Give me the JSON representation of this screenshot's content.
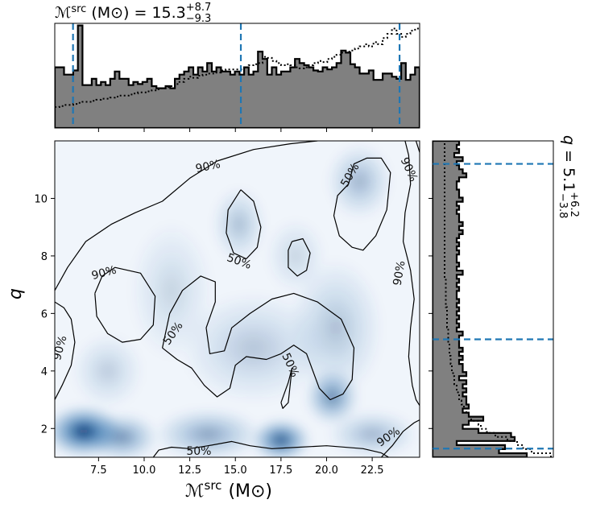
{
  "chart_data": {
    "type": "heatmap",
    "main": {
      "xlabel_main": "ℳ",
      "xlabel_sup": "src",
      "xlabel_unit": "(M⊙)",
      "ylabel": "q",
      "xlim": [
        5.1,
        25.1
      ],
      "ylim": [
        1.0,
        12.0
      ],
      "xticks": [
        7.5,
        10.0,
        12.5,
        15.0,
        17.5,
        20.0,
        22.5
      ],
      "xtick_labels": [
        "7.5",
        "10.0",
        "12.5",
        "15.0",
        "17.5",
        "20.0",
        "22.5"
      ],
      "yticks": [
        2,
        4,
        6,
        8,
        10
      ],
      "ytick_labels": [
        "2",
        "4",
        "6",
        "8",
        "10"
      ],
      "colormap": "Blues",
      "density_blobs": [
        {
          "x": 6.7,
          "y": 1.9,
          "sx": 1.3,
          "sy": 0.55,
          "w": 1.0
        },
        {
          "x": 8.8,
          "y": 1.7,
          "sx": 1.2,
          "sy": 0.5,
          "w": 0.55
        },
        {
          "x": 13.5,
          "y": 1.8,
          "sx": 1.8,
          "sy": 0.55,
          "w": 0.45
        },
        {
          "x": 17.5,
          "y": 1.6,
          "sx": 1.0,
          "sy": 0.45,
          "w": 0.85
        },
        {
          "x": 20.3,
          "y": 3.1,
          "sx": 0.9,
          "sy": 0.6,
          "w": 0.6
        },
        {
          "x": 22.5,
          "y": 1.8,
          "sx": 1.5,
          "sy": 0.5,
          "w": 0.35
        },
        {
          "x": 21.8,
          "y": 10.6,
          "sx": 1.1,
          "sy": 0.8,
          "w": 0.35
        },
        {
          "x": 15.2,
          "y": 9.1,
          "sx": 0.9,
          "sy": 0.8,
          "w": 0.3
        },
        {
          "x": 16.0,
          "y": 4.8,
          "sx": 2.5,
          "sy": 1.2,
          "w": 0.25
        },
        {
          "x": 20.5,
          "y": 5.5,
          "sx": 1.6,
          "sy": 1.5,
          "w": 0.28
        },
        {
          "x": 8.0,
          "y": 4.0,
          "sx": 1.2,
          "sy": 0.8,
          "w": 0.22
        },
        {
          "x": 11.5,
          "y": 6.8,
          "sx": 1.4,
          "sy": 1.5,
          "w": 0.18
        },
        {
          "x": 18.3,
          "y": 8.0,
          "sx": 1.0,
          "sy": 0.8,
          "w": 0.18
        }
      ],
      "contours_50": [
        [
          [
            10.5,
            1.0
          ],
          [
            10.8,
            1.25
          ],
          [
            11.5,
            1.35
          ],
          [
            12.5,
            1.3
          ],
          [
            13.5,
            1.4
          ],
          [
            14.8,
            1.55
          ],
          [
            15.8,
            1.4
          ],
          [
            17.0,
            1.3
          ],
          [
            18.5,
            1.35
          ],
          [
            20.0,
            1.4
          ],
          [
            22.0,
            1.3
          ],
          [
            23.0,
            1.15
          ],
          [
            23.4,
            1.0
          ]
        ],
        [
          [
            21.2,
            10.5
          ],
          [
            21.5,
            11.2
          ],
          [
            22.2,
            11.4
          ],
          [
            23.0,
            11.4
          ],
          [
            23.5,
            10.9
          ],
          [
            23.3,
            9.6
          ],
          [
            22.7,
            8.7
          ],
          [
            22.0,
            8.2
          ],
          [
            21.4,
            8.3
          ],
          [
            20.7,
            8.7
          ],
          [
            20.4,
            9.4
          ],
          [
            20.6,
            10.1
          ],
          [
            21.2,
            10.5
          ]
        ],
        [
          [
            15.3,
            10.3
          ],
          [
            16.0,
            9.9
          ],
          [
            16.4,
            9.0
          ],
          [
            16.2,
            8.3
          ],
          [
            15.6,
            7.9
          ],
          [
            14.9,
            8.1
          ],
          [
            14.5,
            8.8
          ],
          [
            14.6,
            9.6
          ],
          [
            15.3,
            10.3
          ]
        ],
        [
          [
            18.1,
            8.5
          ],
          [
            18.7,
            8.6
          ],
          [
            19.1,
            8.1
          ],
          [
            18.9,
            7.5
          ],
          [
            18.4,
            7.3
          ],
          [
            17.9,
            7.6
          ],
          [
            17.9,
            8.2
          ],
          [
            18.1,
            8.5
          ]
        ],
        [
          [
            11.0,
            4.8
          ],
          [
            11.4,
            6.0
          ],
          [
            12.1,
            6.8
          ],
          [
            13.1,
            7.3
          ],
          [
            13.9,
            7.1
          ],
          [
            13.9,
            6.4
          ],
          [
            13.4,
            5.5
          ],
          [
            13.6,
            4.6
          ],
          [
            14.4,
            4.7
          ],
          [
            14.8,
            5.5
          ],
          [
            15.8,
            6.0
          ],
          [
            17.0,
            6.5
          ],
          [
            18.2,
            6.7
          ],
          [
            19.5,
            6.4
          ],
          [
            20.8,
            5.8
          ],
          [
            21.5,
            4.8
          ],
          [
            21.4,
            3.7
          ],
          [
            20.9,
            3.2
          ],
          [
            20.2,
            3.0
          ],
          [
            19.6,
            3.4
          ],
          [
            18.9,
            4.6
          ],
          [
            18.2,
            4.9
          ],
          [
            17.5,
            4.6
          ],
          [
            16.7,
            4.4
          ],
          [
            15.6,
            4.5
          ],
          [
            15.0,
            4.2
          ],
          [
            14.7,
            3.4
          ],
          [
            14.0,
            3.1
          ],
          [
            13.3,
            3.5
          ],
          [
            12.6,
            4.1
          ],
          [
            11.8,
            4.4
          ],
          [
            11.0,
            4.8
          ]
        ],
        [
          [
            17.5,
            2.9
          ],
          [
            17.9,
            3.6
          ],
          [
            18.1,
            4.1
          ],
          [
            17.9,
            2.9
          ],
          [
            17.6,
            2.7
          ],
          [
            17.5,
            2.9
          ]
        ]
      ],
      "contours_90": [
        [
          [
            5.1,
            6.8
          ],
          [
            5.8,
            7.6
          ],
          [
            6.8,
            8.5
          ],
          [
            8.2,
            9.1
          ],
          [
            9.5,
            9.5
          ],
          [
            11.0,
            9.9
          ],
          [
            12.5,
            10.7
          ],
          [
            14.0,
            11.3
          ],
          [
            16.0,
            11.7
          ],
          [
            18.0,
            11.9
          ],
          [
            19.5,
            12.0
          ]
        ],
        [
          [
            7.3,
            6.7
          ],
          [
            7.7,
            7.3
          ],
          [
            8.4,
            7.6
          ],
          [
            9.8,
            7.4
          ],
          [
            10.6,
            6.6
          ],
          [
            10.5,
            5.6
          ],
          [
            9.8,
            5.1
          ],
          [
            8.8,
            5.0
          ],
          [
            8.0,
            5.3
          ],
          [
            7.4,
            5.9
          ],
          [
            7.3,
            6.7
          ]
        ],
        [
          [
            5.1,
            3.0
          ],
          [
            5.5,
            3.5
          ],
          [
            6.0,
            4.2
          ],
          [
            6.2,
            5.0
          ],
          [
            6.0,
            5.8
          ],
          [
            5.6,
            6.2
          ],
          [
            5.1,
            6.4
          ]
        ],
        [
          [
            24.3,
            12.0
          ],
          [
            24.5,
            11.5
          ],
          [
            24.6,
            10.5
          ],
          [
            24.3,
            9.5
          ],
          [
            24.2,
            8.5
          ],
          [
            24.6,
            7.5
          ],
          [
            24.8,
            6.5
          ],
          [
            24.6,
            5.5
          ],
          [
            24.5,
            4.5
          ],
          [
            24.7,
            3.5
          ],
          [
            24.9,
            3.0
          ],
          [
            25.1,
            2.8
          ]
        ],
        [
          [
            23.0,
            1.0
          ],
          [
            23.6,
            1.4
          ],
          [
            24.2,
            1.9
          ],
          [
            24.8,
            2.2
          ],
          [
            25.1,
            2.3
          ]
        ],
        [
          [
            24.9,
            12.0
          ],
          [
            25.1,
            11.6
          ]
        ]
      ],
      "contour_labels": [
        {
          "text": "90%",
          "x": 13.5,
          "y": 11.1,
          "rot": -12
        },
        {
          "text": "90%",
          "x": 24.5,
          "y": 11.0,
          "rot": 65
        },
        {
          "text": "50%",
          "x": 21.3,
          "y": 10.8,
          "rot": -60
        },
        {
          "text": "90%",
          "x": 7.8,
          "y": 7.4,
          "rot": -15
        },
        {
          "text": "50%",
          "x": 15.2,
          "y": 7.8,
          "rot": 20
        },
        {
          "text": "90%",
          "x": 24.0,
          "y": 7.4,
          "rot": -80
        },
        {
          "text": "50%",
          "x": 11.6,
          "y": 5.3,
          "rot": -55
        },
        {
          "text": "90%",
          "x": 5.4,
          "y": 4.8,
          "rot": -75
        },
        {
          "text": "50%",
          "x": 18.0,
          "y": 4.2,
          "rot": 65
        },
        {
          "text": "50%",
          "x": 13.0,
          "y": 1.2,
          "rot": 0
        },
        {
          "text": "90%",
          "x": 23.4,
          "y": 1.7,
          "rot": -35
        }
      ]
    },
    "top": {
      "title_main": "ℳ",
      "title_sup": "src",
      "title_unit": "(M⊙) = ",
      "title_value": "15.3",
      "title_plus": "+8.7",
      "title_minus": "−9.3",
      "hist_values": [
        0.58,
        0.58,
        0.51,
        0.51,
        0.55,
        0.98,
        0.41,
        0.41,
        0.47,
        0.41,
        0.44,
        0.41,
        0.47,
        0.54,
        0.47,
        0.47,
        0.41,
        0.44,
        0.42,
        0.44,
        0.47,
        0.4,
        0.38,
        0.38,
        0.4,
        0.38,
        0.47,
        0.51,
        0.54,
        0.58,
        0.51,
        0.58,
        0.54,
        0.62,
        0.54,
        0.58,
        0.54,
        0.54,
        0.51,
        0.54,
        0.51,
        0.58,
        0.51,
        0.54,
        0.73,
        0.66,
        0.51,
        0.58,
        0.51,
        0.54,
        0.54,
        0.58,
        0.66,
        0.62,
        0.6,
        0.58,
        0.55,
        0.54,
        0.58,
        0.56,
        0.58,
        0.62,
        0.74,
        0.72,
        0.61,
        0.58,
        0.52,
        0.52,
        0.55,
        0.46,
        0.46,
        0.52,
        0.52,
        0.49,
        0.47,
        0.62,
        0.46,
        0.51,
        0.58
      ],
      "prior_values": [
        0.2,
        0.21,
        0.22,
        0.22,
        0.23,
        0.24,
        0.25,
        0.25,
        0.26,
        0.27,
        0.28,
        0.28,
        0.29,
        0.3,
        0.31,
        0.31,
        0.32,
        0.33,
        0.34,
        0.34,
        0.35,
        0.36,
        0.37,
        0.38,
        0.39,
        0.4,
        0.42,
        0.44,
        0.47,
        0.49,
        0.48,
        0.5,
        0.51,
        0.52,
        0.52,
        0.53,
        0.55,
        0.56,
        0.56,
        0.56,
        0.56,
        0.58,
        0.6,
        0.61,
        0.62,
        0.68,
        0.67,
        0.64,
        0.62,
        0.6,
        0.61,
        0.6,
        0.58,
        0.57,
        0.58,
        0.6,
        0.62,
        0.64,
        0.63,
        0.66,
        0.68,
        0.7,
        0.72,
        0.73,
        0.74,
        0.76,
        0.78,
        0.8,
        0.78,
        0.82,
        0.8,
        0.86,
        0.9,
        0.95,
        0.9,
        0.87,
        0.9,
        0.93,
        0.95
      ],
      "quantile_lines": [
        6.1,
        15.3,
        24.0
      ]
    },
    "right": {
      "label_main": "q",
      "label_eq": " = ",
      "label_value": "5.1",
      "label_plus": "+6.2",
      "label_minus": "−3.8",
      "hist_values": [
        0.78,
        0.55,
        0.6,
        0.2,
        0.68,
        0.65,
        0.38,
        0.25,
        0.3,
        0.42,
        0.3,
        0.25,
        0.3,
        0.28,
        0.28,
        0.25,
        0.28,
        0.25,
        0.28,
        0.22,
        0.28,
        0.25,
        0.25,
        0.22,
        0.25,
        0.22,
        0.25,
        0.22,
        0.22,
        0.22,
        0.25,
        0.2,
        0.22,
        0.2,
        0.22,
        0.2,
        0.22,
        0.2,
        0.22,
        0.2,
        0.2,
        0.22,
        0.2,
        0.22,
        0.2,
        0.25,
        0.2,
        0.22,
        0.2,
        0.2,
        0.22,
        0.2,
        0.22,
        0.2,
        0.22,
        0.25,
        0.22,
        0.25,
        0.22,
        0.22,
        0.2,
        0.22,
        0.2,
        0.25,
        0.22,
        0.22,
        0.2,
        0.2,
        0.22,
        0.28,
        0.25,
        0.22,
        0.2,
        0.25,
        0.18,
        0.22,
        0.2,
        0.22
      ],
      "prior_values": [
        0.98,
        0.82,
        0.75,
        0.7,
        0.62,
        0.52,
        0.45,
        0.4,
        0.38,
        0.32,
        0.3,
        0.28,
        0.26,
        0.24,
        0.22,
        0.22,
        0.2,
        0.2,
        0.18,
        0.18,
        0.17,
        0.16,
        0.16,
        0.15,
        0.15,
        0.14,
        0.14,
        0.14,
        0.13,
        0.13,
        0.13,
        0.13,
        0.12,
        0.12,
        0.12,
        0.12,
        0.12,
        0.11,
        0.11,
        0.11,
        0.11,
        0.11,
        0.11,
        0.11,
        0.1,
        0.1,
        0.1,
        0.1,
        0.1,
        0.1,
        0.1,
        0.1,
        0.1,
        0.1,
        0.1,
        0.1,
        0.1,
        0.1,
        0.1,
        0.1,
        0.1,
        0.1,
        0.1,
        0.1,
        0.1,
        0.1,
        0.1,
        0.1,
        0.1,
        0.1,
        0.1,
        0.1,
        0.1,
        0.1,
        0.1,
        0.1,
        0.1,
        0.1
      ],
      "quantile_lines": [
        1.3,
        5.1,
        11.2
      ]
    },
    "colors": {
      "hist_fill": "#808080",
      "quantile_line": "#1f77b4",
      "contour": "#000000"
    }
  }
}
